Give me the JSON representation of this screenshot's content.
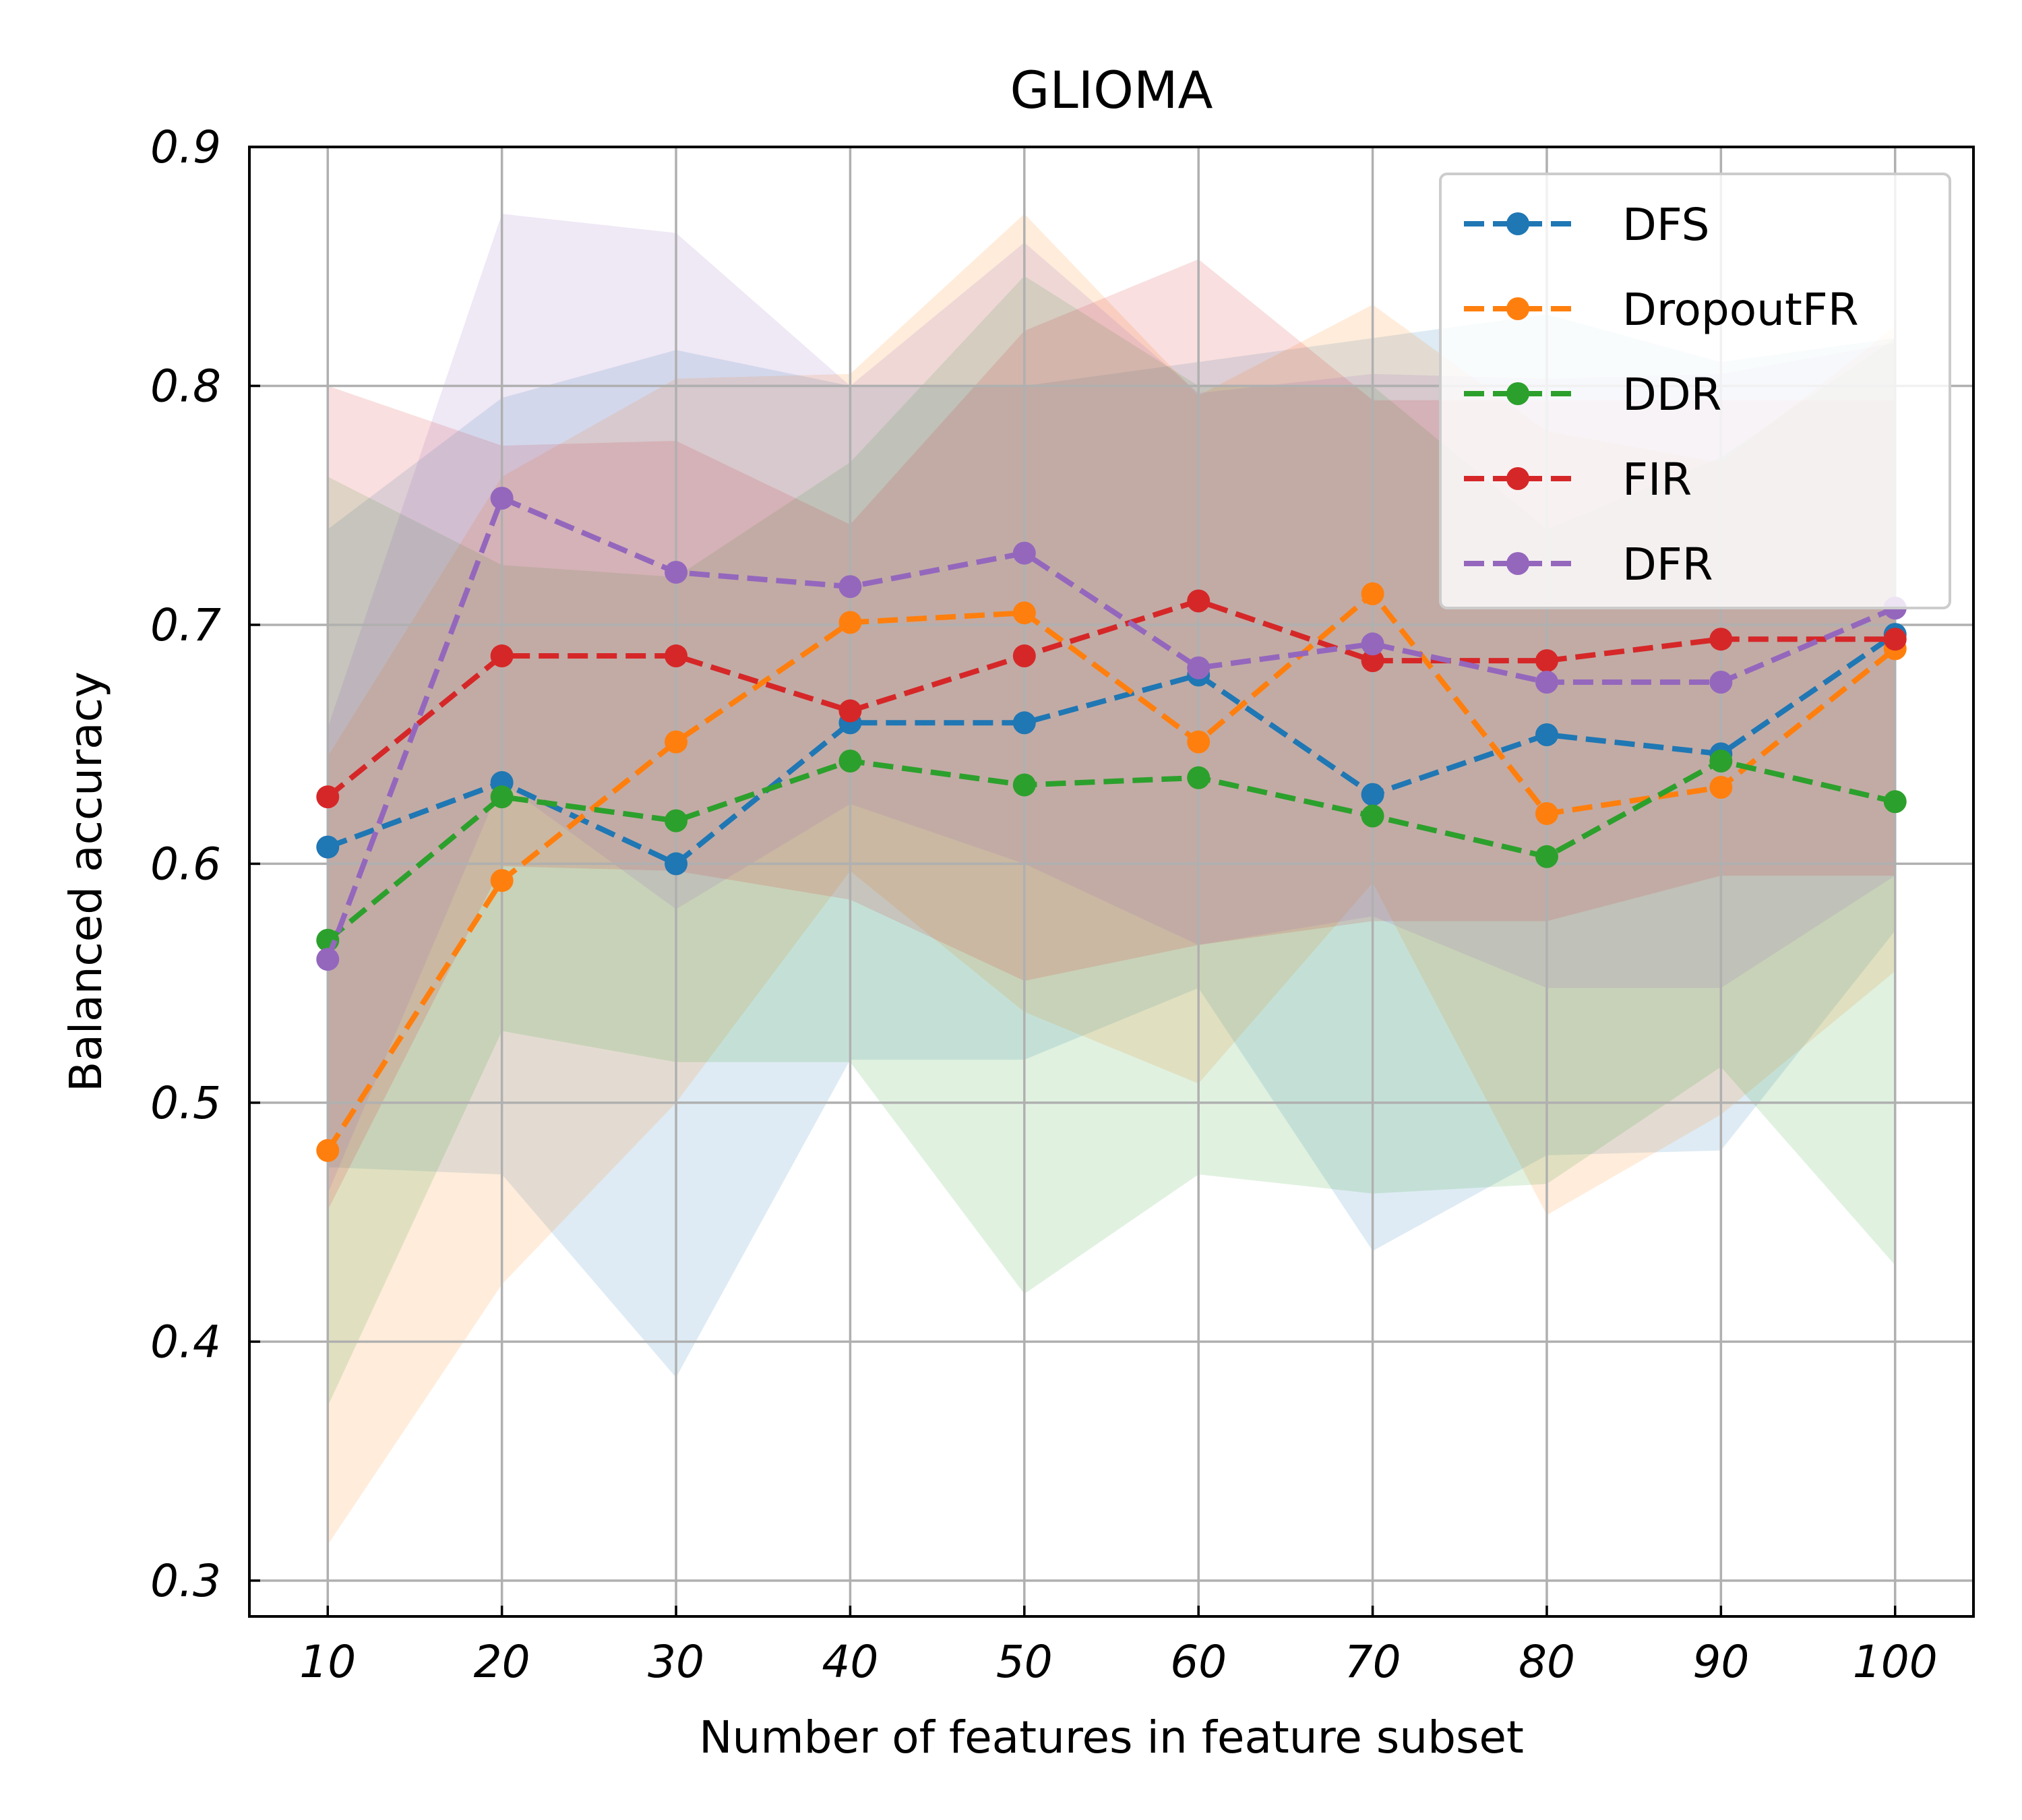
{
  "chart_data": {
    "type": "line",
    "title": "GLIOMA",
    "xlabel": "Number of features in feature subset",
    "ylabel": "Balanced accuracy",
    "x": [
      10,
      20,
      30,
      40,
      50,
      60,
      70,
      80,
      90,
      100
    ],
    "x_ticks": [
      "10",
      "20",
      "30",
      "40",
      "50",
      "60",
      "70",
      "80",
      "90",
      "100"
    ],
    "y_ticks": [
      "0.3",
      "0.4",
      "0.5",
      "0.6",
      "0.7",
      "0.8",
      "0.9"
    ],
    "xlim": [
      5.5,
      104.5
    ],
    "ylim": [
      0.285,
      0.9
    ],
    "grid": true,
    "legend_position": "top-right",
    "series": [
      {
        "name": "DFS",
        "color": "#1f77b4",
        "values": [
          0.607,
          0.634,
          0.6,
          0.659,
          0.659,
          0.679,
          0.629,
          0.654,
          0.646,
          0.696
        ],
        "upper": [
          0.74,
          0.795,
          0.815,
          0.8,
          0.8,
          0.81,
          0.82,
          0.83,
          0.81,
          0.82
        ],
        "lower": [
          0.473,
          0.47,
          0.385,
          0.518,
          0.518,
          0.548,
          0.438,
          0.478,
          0.48,
          0.572
        ]
      },
      {
        "name": "DropoutFR",
        "color": "#ff7f0e",
        "values": [
          0.48,
          0.593,
          0.651,
          0.701,
          0.705,
          0.651,
          0.713,
          0.621,
          0.632,
          0.69
        ],
        "upper": [
          0.645,
          0.762,
          0.803,
          0.805,
          0.872,
          0.796,
          0.834,
          0.781,
          0.768,
          0.825
        ],
        "lower": [
          0.315,
          0.424,
          0.5,
          0.597,
          0.538,
          0.508,
          0.592,
          0.453,
          0.495,
          0.555
        ]
      },
      {
        "name": "DDR",
        "color": "#2ca02c",
        "values": [
          0.568,
          0.628,
          0.618,
          0.643,
          0.633,
          0.636,
          0.62,
          0.603,
          0.643,
          0.626
        ],
        "upper": [
          0.762,
          0.725,
          0.72,
          0.768,
          0.846,
          0.8,
          0.8,
          0.74,
          0.77,
          0.82
        ],
        "lower": [
          0.373,
          0.53,
          0.517,
          0.517,
          0.42,
          0.47,
          0.462,
          0.466,
          0.515,
          0.432
        ]
      },
      {
        "name": "FIR",
        "color": "#d62728",
        "values": [
          0.628,
          0.687,
          0.687,
          0.664,
          0.687,
          0.71,
          0.685,
          0.685,
          0.694,
          0.694
        ],
        "upper": [
          0.8,
          0.775,
          0.777,
          0.742,
          0.823,
          0.853,
          0.794,
          0.794,
          0.794,
          0.794
        ],
        "lower": [
          0.455,
          0.599,
          0.597,
          0.585,
          0.551,
          0.566,
          0.576,
          0.576,
          0.595,
          0.595
        ]
      },
      {
        "name": "DFR",
        "color": "#9467bd",
        "values": [
          0.56,
          0.753,
          0.722,
          0.716,
          0.73,
          0.682,
          0.692,
          0.676,
          0.676,
          0.707
        ],
        "upper": [
          0.657,
          0.872,
          0.864,
          0.8,
          0.86,
          0.797,
          0.805,
          0.803,
          0.805,
          0.818
        ],
        "lower": [
          0.462,
          0.634,
          0.581,
          0.625,
          0.6,
          0.566,
          0.578,
          0.548,
          0.548,
          0.595
        ]
      }
    ]
  }
}
